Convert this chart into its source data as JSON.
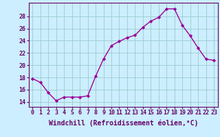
{
  "x": [
    0,
    1,
    2,
    3,
    4,
    5,
    6,
    7,
    8,
    9,
    10,
    11,
    12,
    13,
    14,
    15,
    16,
    17,
    18,
    19,
    20,
    21,
    22,
    23
  ],
  "y": [
    17.8,
    17.2,
    15.5,
    14.2,
    14.8,
    14.8,
    14.8,
    15.0,
    18.2,
    21.0,
    23.2,
    23.9,
    24.5,
    24.9,
    26.2,
    27.2,
    27.8,
    29.2,
    29.2,
    26.5,
    24.8,
    22.8,
    21.0,
    20.8
  ],
  "line_color": "#990099",
  "marker": "D",
  "marker_size": 2.2,
  "bg_color": "#cceeff",
  "grid_color": "#99cccc",
  "axis_color": "#660066",
  "ylabel_ticks": [
    14,
    16,
    18,
    20,
    22,
    24,
    26,
    28
  ],
  "ylim": [
    13.2,
    30.2
  ],
  "xlim": [
    -0.5,
    23.5
  ],
  "xlabel": "Windchill (Refroidissement éolien,°C)",
  "xlabel_fontsize": 7,
  "tick_fontsize": 6,
  "linewidth": 1.0
}
